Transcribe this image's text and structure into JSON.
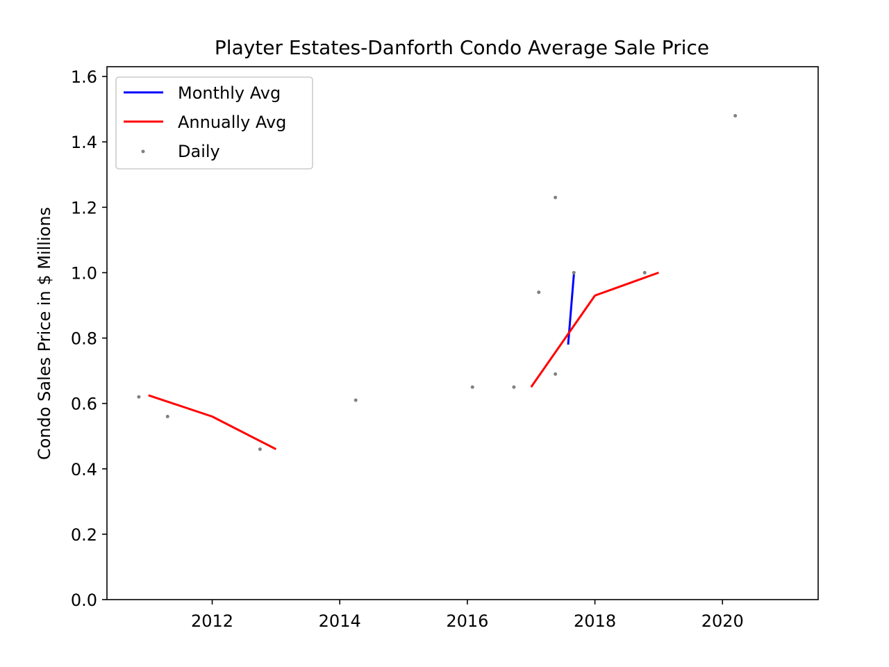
{
  "chart_data": {
    "type": "line",
    "title": "Playter Estates-Danforth Condo Average Sale Price",
    "xlabel": "",
    "ylabel": "Condo Sales Price in $ Millions",
    "xlim": [
      2010.35,
      2021.5
    ],
    "ylim": [
      0.0,
      1.63
    ],
    "x_ticks": [
      2012,
      2014,
      2016,
      2018,
      2020
    ],
    "y_ticks": [
      0.0,
      0.2,
      0.4,
      0.6,
      0.8,
      1.0,
      1.2,
      1.4,
      1.6
    ],
    "x_tick_labels": [
      "2012",
      "2014",
      "2016",
      "2018",
      "2020"
    ],
    "y_tick_labels": [
      "0.0",
      "0.2",
      "0.4",
      "0.6",
      "0.8",
      "1.0",
      "1.2",
      "1.4",
      "1.6"
    ],
    "grid": false,
    "legend_position": "upper-left",
    "series": [
      {
        "name": "Monthly Avg",
        "kind": "line",
        "color": "#0000ff",
        "points": [
          [
            2017.58,
            0.78
          ],
          [
            2017.67,
            0.995
          ]
        ]
      },
      {
        "name": "Annually Avg",
        "kind": "line",
        "color": "#ff0000",
        "segments": [
          [
            [
              2011.0,
              0.625
            ],
            [
              2012.0,
              0.56
            ],
            [
              2013.0,
              0.46
            ]
          ],
          [
            [
              2017.0,
              0.65
            ],
            [
              2018.0,
              0.93
            ],
            [
              2019.0,
              1.0
            ]
          ]
        ]
      },
      {
        "name": "Daily",
        "kind": "scatter",
        "color": "#808080",
        "points": [
          [
            2010.85,
            0.62
          ],
          [
            2011.3,
            0.56
          ],
          [
            2012.75,
            0.46
          ],
          [
            2014.25,
            0.61
          ],
          [
            2016.08,
            0.65
          ],
          [
            2016.73,
            0.65
          ],
          [
            2017.12,
            0.94
          ],
          [
            2017.38,
            1.23
          ],
          [
            2017.38,
            0.69
          ],
          [
            2017.67,
            1.0
          ],
          [
            2018.78,
            1.0
          ],
          [
            2020.2,
            1.48
          ]
        ]
      }
    ]
  }
}
